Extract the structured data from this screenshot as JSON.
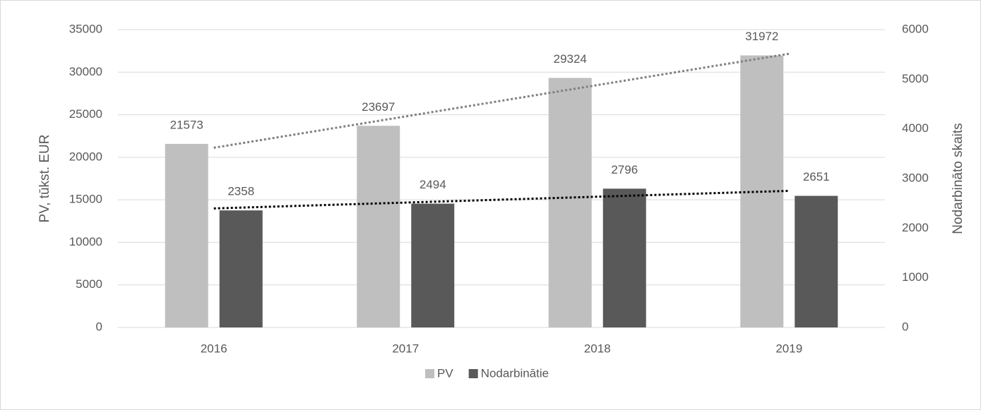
{
  "chart_data": {
    "type": "bar",
    "categories": [
      "2016",
      "2017",
      "2018",
      "2019"
    ],
    "series": [
      {
        "name": "PV",
        "color": "#bfbfbf",
        "values": [
          21573,
          23697,
          29324,
          31972
        ],
        "trendline_color": "#808080"
      },
      {
        "name": "Nodarbinātie",
        "color": "#595959",
        "values": [
          2358,
          2494,
          2796,
          2651
        ],
        "axis": "y2",
        "trendline_color": "#000000"
      }
    ],
    "ylabel": "PV, tūkst. EUR",
    "y2label": "Nodarbināto skaits",
    "ylim": [
      0,
      35000
    ],
    "yticks": [
      0,
      5000,
      10000,
      15000,
      20000,
      25000,
      30000,
      35000
    ],
    "y2lim": [
      0,
      6000
    ],
    "y2ticks": [
      0,
      1000,
      2000,
      3000,
      4000,
      5000,
      6000
    ],
    "grid": true,
    "trendline": true,
    "legend": "bottom"
  }
}
